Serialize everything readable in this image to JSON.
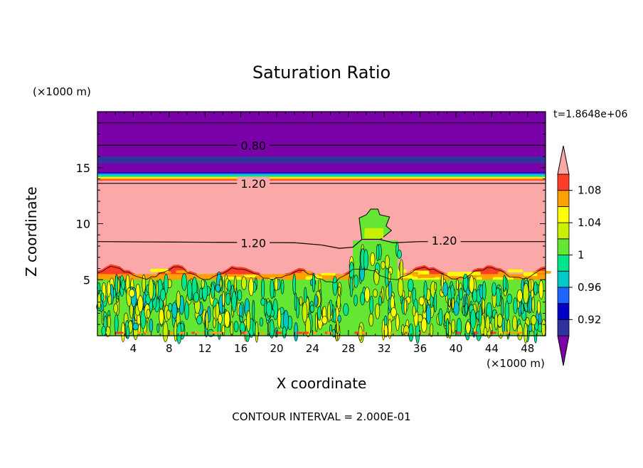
{
  "chart_data": {
    "type": "heatmap",
    "title": "Saturation Ratio",
    "xlabel": "X coordinate",
    "ylabel": "Z coordinate",
    "x_unit": "(×1000 m)",
    "y_unit": "(×1000 m)",
    "xlim": [
      0,
      50
    ],
    "ylim": [
      0,
      20
    ],
    "x_ticks": [
      4,
      8,
      12,
      16,
      20,
      24,
      28,
      32,
      36,
      40,
      44,
      48
    ],
    "y_ticks": [
      5,
      10,
      15
    ],
    "time_label": "t=1.8648e+06",
    "footer": "CONTOUR INTERVAL = 2.000E-01",
    "contour_labels": [
      {
        "text": "0.80",
        "x": 17.4,
        "z": 17.0
      },
      {
        "text": "1.20",
        "x": 17.4,
        "z": 13.6
      },
      {
        "text": "1.20",
        "x": 17.4,
        "z": 8.3
      },
      {
        "text": "1.20",
        "x": 38.7,
        "z": 8.5
      }
    ],
    "colorbar": {
      "labels": [
        "1.08",
        "1.04",
        "1",
        "0.96",
        "0.92"
      ],
      "levels": [
        0.9,
        0.92,
        0.94,
        0.96,
        0.98,
        1.0,
        1.02,
        1.04,
        1.06,
        1.08,
        1.1
      ],
      "colors": [
        "#7a00a8",
        "#32329e",
        "#0000c8",
        "#1e64ff",
        "#00c8c8",
        "#00e68c",
        "#64e632",
        "#c8f000",
        "#ffff00",
        "#ffa000",
        "#ff3c28",
        "#faa8a8"
      ],
      "extend": "both"
    },
    "layers": [
      {
        "z_min": 0.0,
        "z_max": 5.0,
        "value": "0.98–1.04"
      },
      {
        "z_min": 5.0,
        "z_max": 6.3,
        "value": "1.04–1.10"
      },
      {
        "z_min": 6.3,
        "z_max": 14.0,
        "value": "> 1.10"
      },
      {
        "z_min": 14.0,
        "z_max": 14.6,
        "value": "0.94–1.10"
      },
      {
        "z_min": 14.6,
        "z_max": 20.0,
        "value": "< 0.90"
      }
    ],
    "cloud_plume": {
      "x_min": 28.5,
      "x_max": 33.5,
      "z_top": 11.3
    }
  }
}
